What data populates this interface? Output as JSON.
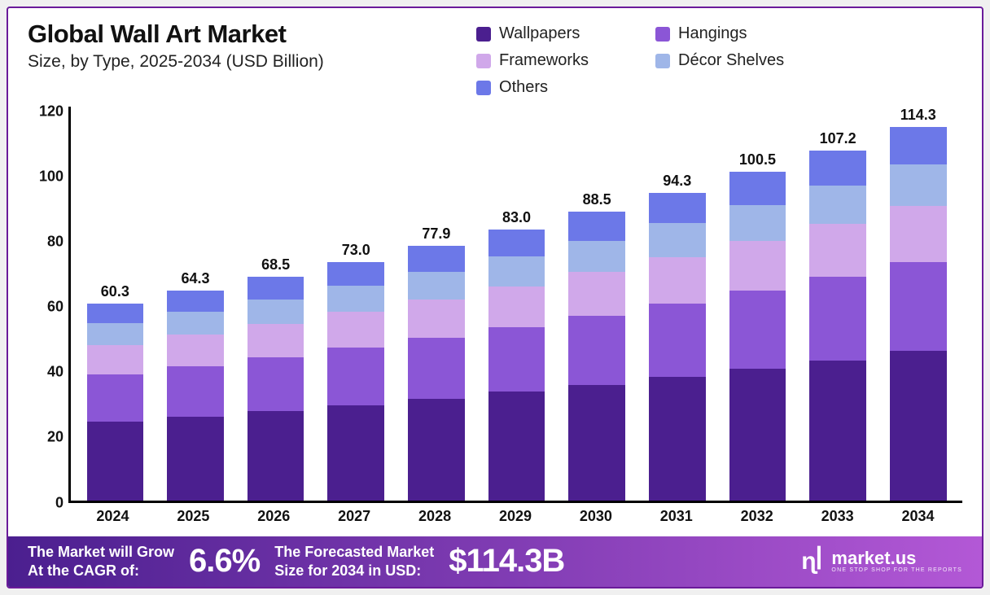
{
  "title": "Global Wall Art Market",
  "subtitle": "Size, by Type, 2025-2034 (USD Billion)",
  "chart": {
    "type": "stacked-bar",
    "ylim": [
      0,
      120
    ],
    "ytick_step": 20,
    "yticks": [
      "0",
      "20",
      "40",
      "60",
      "80",
      "100",
      "120"
    ],
    "axis_color": "#000000",
    "background_color": "#ffffff",
    "label_fontsize": 18,
    "label_fontweight": 700,
    "bar_width_pct": 72,
    "series": [
      {
        "name": "Wallpapers",
        "color": "#4b1f8f"
      },
      {
        "name": "Hangings",
        "color": "#8b56d6"
      },
      {
        "name": "Frameworks",
        "color": "#d0a8ea"
      },
      {
        "name": "Décor Shelves",
        "color": "#9fb6e8"
      },
      {
        "name": "Others",
        "color": "#6c78e8"
      }
    ],
    "categories": [
      "2024",
      "2025",
      "2026",
      "2027",
      "2028",
      "2029",
      "2030",
      "2031",
      "2032",
      "2033",
      "2034"
    ],
    "totals": [
      "60.3",
      "64.3",
      "68.5",
      "73.0",
      "77.9",
      "83.0",
      "88.5",
      "94.3",
      "100.5",
      "107.2",
      "114.3"
    ],
    "values": [
      [
        24.1,
        25.7,
        27.4,
        29.2,
        31.1,
        33.2,
        35.4,
        37.7,
        40.2,
        42.9,
        45.7
      ],
      [
        14.5,
        15.4,
        16.4,
        17.5,
        18.7,
        19.9,
        21.2,
        22.6,
        24.1,
        25.7,
        27.4
      ],
      [
        9.0,
        9.6,
        10.3,
        11.0,
        11.7,
        12.5,
        13.3,
        14.2,
        15.1,
        16.1,
        17.2
      ],
      [
        6.6,
        7.1,
        7.5,
        8.0,
        8.6,
        9.1,
        9.7,
        10.4,
        11.1,
        11.8,
        12.6
      ],
      [
        6.0,
        6.4,
        6.9,
        7.3,
        7.8,
        8.3,
        8.9,
        9.4,
        10.1,
        10.7,
        11.5
      ]
    ]
  },
  "footer": {
    "gradient_from": "#4b1f8f",
    "gradient_to": "#b358d6",
    "cagr_label": "The Market will Grow\nAt the CAGR of:",
    "cagr_value": "6.6%",
    "forecast_label": "The Forecasted Market\nSize for 2034 in USD:",
    "forecast_value": "$114.3B",
    "brand_name": "market.us",
    "brand_tagline": "ONE STOP SHOP FOR THE REPORTS"
  }
}
